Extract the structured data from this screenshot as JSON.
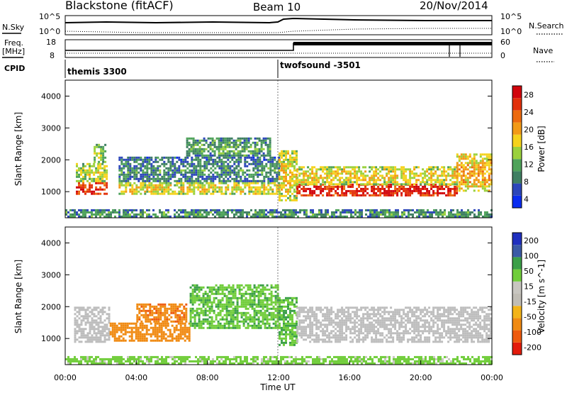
{
  "header": {
    "station": "Blackstone (fitACF)",
    "beam": "Beam 10",
    "date": "20/Nov/2014"
  },
  "strip_labels": {
    "nsky": "N.Sky",
    "freq_line1": "Freq.",
    "freq_line2": "[MHz]",
    "cpid": "CPID",
    "nsearch": "N.Search",
    "nave": "Nave"
  },
  "strip_ticks": {
    "noise_left": [
      "10^5",
      "10^0"
    ],
    "noise_right": [
      "10^5",
      "10^0"
    ],
    "freq_left": [
      "18",
      "8"
    ],
    "freq_right": [
      "60",
      "0"
    ]
  },
  "programs": [
    {
      "name": "themis 3300",
      "start_hour": 0.0
    },
    {
      "name": "twofsound -3501",
      "start_hour": 12.0
    }
  ],
  "colors": {
    "power_scale": [
      "#0a2cf0",
      "#2c46ba",
      "#3f7f62",
      "#4fa35a",
      "#9ad13d",
      "#f5d21c",
      "#f29a16",
      "#ec6a0e",
      "#e2300b",
      "#d1040c"
    ],
    "velocity_scale": [
      "#e31b0b",
      "#ee5a0d",
      "#f08a12",
      "#f3b419",
      "#c0bdb5",
      "#c8c6c0",
      "#70cd3a",
      "#3b9f48",
      "#3a5aa6",
      "#1f2fbf"
    ],
    "ground_scatter": "#bdbdbd"
  },
  "chart_data": [
    {
      "type": "heatmap",
      "panel": "power",
      "ylabel": "Slant Range [km]",
      "ylim": [
        180,
        4500
      ],
      "yticks": [
        "1000",
        "2000",
        "3000",
        "4000"
      ],
      "xlim": [
        0,
        24
      ],
      "colorbar_label": "Power [dB]",
      "colorbar_ticks": [
        "4",
        "8",
        "12",
        "16",
        "20",
        "24",
        "28"
      ],
      "colorbar_range": [
        0,
        30
      ],
      "bands": [
        {
          "t0": 0.6,
          "t1": 2.3,
          "r_lo": 900,
          "r_hi": 1300,
          "level": 24
        },
        {
          "t0": 0.6,
          "t1": 2.3,
          "r_lo": 1300,
          "r_hi": 1900,
          "level": 12
        },
        {
          "t0": 1.6,
          "t1": 2.3,
          "r_lo": 1900,
          "r_hi": 2500,
          "level": 10
        },
        {
          "t0": 3.0,
          "t1": 12.0,
          "r_lo": 950,
          "r_hi": 1300,
          "level": 14
        },
        {
          "t0": 3.0,
          "t1": 12.0,
          "r_lo": 1300,
          "r_hi": 2100,
          "level": 6
        },
        {
          "t0": 6.8,
          "t1": 11.5,
          "r_lo": 2100,
          "r_hi": 2700,
          "level": 8
        },
        {
          "t0": 12.0,
          "t1": 13.0,
          "r_lo": 700,
          "r_hi": 2300,
          "level": 14
        },
        {
          "t0": 13.0,
          "t1": 22.0,
          "r_lo": 900,
          "r_hi": 1250,
          "level": 25
        },
        {
          "t0": 13.0,
          "t1": 22.0,
          "r_lo": 1250,
          "r_hi": 1800,
          "level": 14
        },
        {
          "t0": 22.0,
          "t1": 24.0,
          "r_lo": 1000,
          "r_hi": 2200,
          "level": 16
        },
        {
          "t0": 0.0,
          "t1": 24.0,
          "r_lo": 200,
          "r_hi": 450,
          "level": 7
        }
      ]
    },
    {
      "type": "heatmap",
      "panel": "velocity",
      "ylabel": "Slant Range [km]",
      "ylim": [
        180,
        4500
      ],
      "yticks": [
        "1000",
        "2000",
        "3000",
        "4000"
      ],
      "xlabel": "Time UT",
      "xticks": [
        "00:00",
        "04:00",
        "08:00",
        "12:00",
        "16:00",
        "20:00",
        "00:00"
      ],
      "xlim": [
        0,
        24
      ],
      "colorbar_label": "Velocity [m s^-1]",
      "colorbar_ticks": [
        "200",
        "100",
        "50",
        "15",
        "-15",
        "-50",
        "-100",
        "-200"
      ],
      "bands": [
        {
          "t0": 0.5,
          "t1": 2.5,
          "r_lo": 900,
          "r_hi": 2000,
          "velocity": 0,
          "ground_scatter": true
        },
        {
          "t0": 2.5,
          "t1": 7.0,
          "r_lo": 950,
          "r_hi": 1500,
          "velocity": -70
        },
        {
          "t0": 4.0,
          "t1": 6.8,
          "r_lo": 1500,
          "r_hi": 2100,
          "velocity": -90
        },
        {
          "t0": 7.0,
          "t1": 12.0,
          "r_lo": 1300,
          "r_hi": 2700,
          "velocity": 40
        },
        {
          "t0": 12.0,
          "t1": 13.0,
          "r_lo": 800,
          "r_hi": 2300,
          "velocity": 45
        },
        {
          "t0": 13.0,
          "t1": 24.0,
          "r_lo": 900,
          "r_hi": 2000,
          "velocity": 0,
          "ground_scatter": true
        },
        {
          "t0": 0.0,
          "t1": 24.0,
          "r_lo": 200,
          "r_hi": 450,
          "velocity": 30
        }
      ]
    }
  ]
}
